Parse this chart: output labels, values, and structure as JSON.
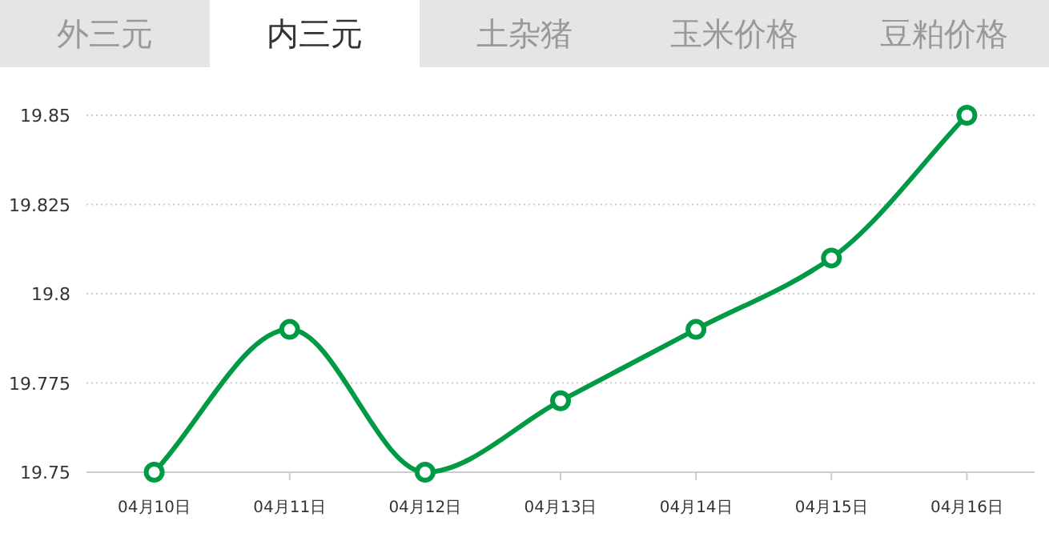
{
  "chart_data": {
    "type": "line",
    "title": "内三元",
    "annotations": [
      "外三元",
      "土杂猪",
      "玉米价格",
      "豆粕价格"
    ],
    "categories": [
      "04月10日",
      "04月11日",
      "04月12日",
      "04月13日",
      "04月14日",
      "04月15日",
      "04月16日"
    ],
    "values": [
      19.75,
      19.79,
      19.75,
      19.77,
      19.79,
      19.81,
      19.85
    ],
    "color": "#009a44",
    "ylim": [
      19.75,
      19.85
    ],
    "yticks": [
      19.75,
      19.775,
      19.8,
      19.825,
      19.85
    ],
    "grid": "y",
    "marker": "circle",
    "line_style": "solid"
  }
}
